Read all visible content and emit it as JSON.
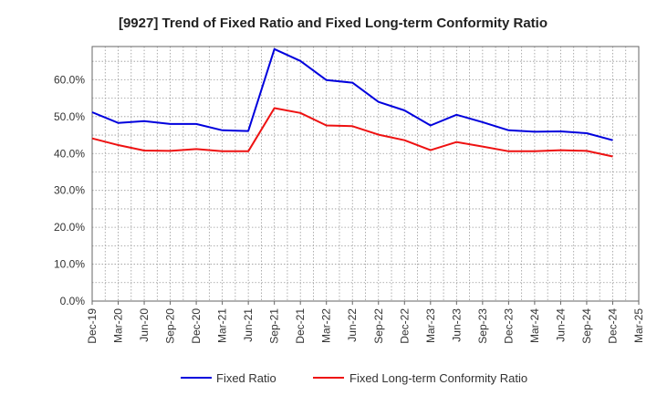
{
  "chart_data": {
    "type": "line",
    "title": "[9927]  Trend of Fixed Ratio and Fixed Long-term Conformity Ratio",
    "xlabel": "",
    "ylabel": "",
    "x_ticks": [
      "Dec-19",
      "Mar-20",
      "Jun-20",
      "Sep-20",
      "Dec-20",
      "Mar-21",
      "Jun-21",
      "Sep-21",
      "Dec-21",
      "Mar-22",
      "Jun-22",
      "Sep-22",
      "Dec-22",
      "Mar-23",
      "Jun-23",
      "Sep-23",
      "Dec-23",
      "Mar-24",
      "Jun-24",
      "Sep-24",
      "Dec-24",
      "Mar-25"
    ],
    "y_ticks": [
      "0.0%",
      "10.0%",
      "20.0%",
      "30.0%",
      "40.0%",
      "50.0%",
      "60.0%"
    ],
    "y_tick_values": [
      0,
      10,
      20,
      30,
      40,
      50,
      60
    ],
    "ylim": [
      0,
      69
    ],
    "grid": true,
    "legend_position": "bottom",
    "x": [
      "Dec-19",
      "Mar-20",
      "Jun-20",
      "Sep-20",
      "Dec-20",
      "Mar-21",
      "Jun-21",
      "Sep-21",
      "Dec-21",
      "Mar-22",
      "Jun-22",
      "Sep-22",
      "Dec-22",
      "Mar-23",
      "Jun-23",
      "Sep-23",
      "Dec-23",
      "Mar-24",
      "Jun-24",
      "Sep-24",
      "Dec-24"
    ],
    "series": [
      {
        "name": "Fixed Ratio",
        "color": "#0000dd",
        "values": [
          51.2,
          48.3,
          48.8,
          48.0,
          48.0,
          46.3,
          46.1,
          68.3,
          65.1,
          59.9,
          59.2,
          54.0,
          51.7,
          47.6,
          50.5,
          48.5,
          46.3,
          45.9,
          46.0,
          45.5,
          43.6
        ]
      },
      {
        "name": "Fixed Long-term Conformity Ratio",
        "color": "#ee1111",
        "values": [
          44.1,
          42.3,
          40.8,
          40.7,
          41.2,
          40.6,
          40.6,
          52.3,
          51.0,
          47.6,
          47.4,
          45.1,
          43.6,
          40.9,
          43.1,
          41.9,
          40.6,
          40.6,
          40.9,
          40.7,
          39.2
        ]
      }
    ]
  }
}
